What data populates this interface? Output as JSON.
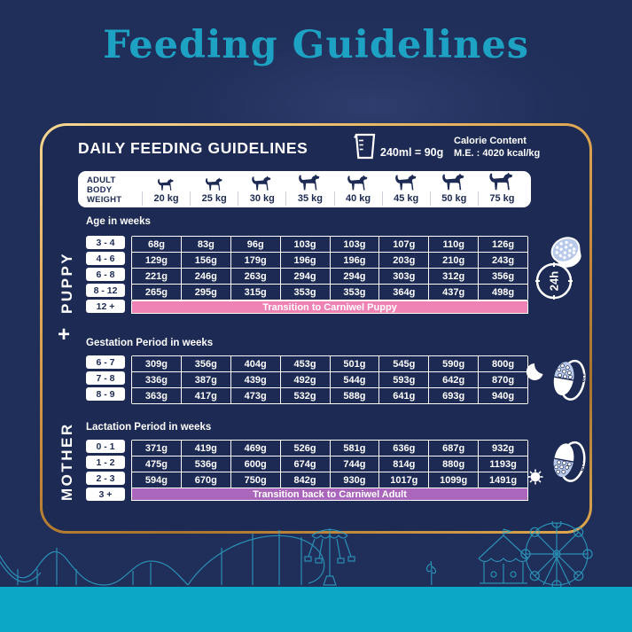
{
  "title": "Feeding Guidelines",
  "panel": {
    "heading": "DAILY FEEDING GUIDELINES",
    "measure_equivalence": "240ml = 90g",
    "calorie_label": "Calorie Content",
    "calorie_value": "M.E. : 4020 kcal/kg",
    "weight_axis_label": "ADULT BODY WEIGHT"
  },
  "side_labels": {
    "puppy": "PUPPY",
    "plus": "+",
    "mother": "MOTHER"
  },
  "icons": {
    "measuring_cup": "measuring-cup",
    "dog": "dog-silhouette",
    "clock_label": "24h",
    "moon": "crescent-moon",
    "sun": "sun",
    "gestation_half": "1/2",
    "lactation_half": "1/2"
  },
  "colors": {
    "background_navy": "#202e5a",
    "panel_navy": "#1c2a54",
    "gold_border": "#dca64e",
    "title_teal": "#1ea2c3",
    "pink_banner": "#ef82b4",
    "purple_banner": "#aa66ba",
    "cyan_band": "#0ca7c6"
  },
  "chart_data": {
    "type": "table",
    "title": "DAILY FEEDING GUIDELINES",
    "columns_label": "ADULT BODY WEIGHT",
    "columns": [
      "20 kg",
      "25 kg",
      "30 kg",
      "35 kg",
      "40 kg",
      "45 kg",
      "50 kg",
      "75 kg"
    ],
    "tables": {
      "puppy": {
        "group": "PUPPY",
        "header": "Age in weeks",
        "rows": [
          {
            "label": "3 - 4",
            "values": [
              "68g",
              "83g",
              "96g",
              "103g",
              "103g",
              "107g",
              "110g",
              "126g"
            ]
          },
          {
            "label": "4 - 6",
            "values": [
              "129g",
              "156g",
              "179g",
              "196g",
              "196g",
              "203g",
              "210g",
              "243g"
            ]
          },
          {
            "label": "6 - 8",
            "values": [
              "221g",
              "246g",
              "263g",
              "294g",
              "294g",
              "303g",
              "312g",
              "356g"
            ]
          },
          {
            "label": "8 - 12",
            "values": [
              "265g",
              "295g",
              "315g",
              "353g",
              "353g",
              "364g",
              "437g",
              "498g"
            ]
          }
        ],
        "footer": {
          "label": "12 +",
          "text": "Transition to Carniwel Puppy"
        }
      },
      "gestation": {
        "group": "MOTHER",
        "header": "Gestation Period in weeks",
        "rows": [
          {
            "label": "6 - 7",
            "values": [
              "309g",
              "356g",
              "404g",
              "453g",
              "501g",
              "545g",
              "590g",
              "800g"
            ]
          },
          {
            "label": "7 - 8",
            "values": [
              "336g",
              "387g",
              "439g",
              "492g",
              "544g",
              "593g",
              "642g",
              "870g"
            ]
          },
          {
            "label": "8 - 9",
            "values": [
              "363g",
              "417g",
              "473g",
              "532g",
              "588g",
              "641g",
              "693g",
              "940g"
            ]
          }
        ]
      },
      "lactation": {
        "group": "MOTHER",
        "header": "Lactation Period in weeks",
        "rows": [
          {
            "label": "0 - 1",
            "values": [
              "371g",
              "419g",
              "469g",
              "526g",
              "581g",
              "636g",
              "687g",
              "932g"
            ]
          },
          {
            "label": "1 - 2",
            "values": [
              "475g",
              "536g",
              "600g",
              "674g",
              "744g",
              "814g",
              "880g",
              "1193g"
            ]
          },
          {
            "label": "2 - 3",
            "values": [
              "594g",
              "670g",
              "750g",
              "842g",
              "930g",
              "1017g",
              "1099g",
              "1491g"
            ]
          }
        ],
        "footer": {
          "label": "3 +",
          "text": "Transition back to Carniwel Adult"
        }
      }
    }
  }
}
